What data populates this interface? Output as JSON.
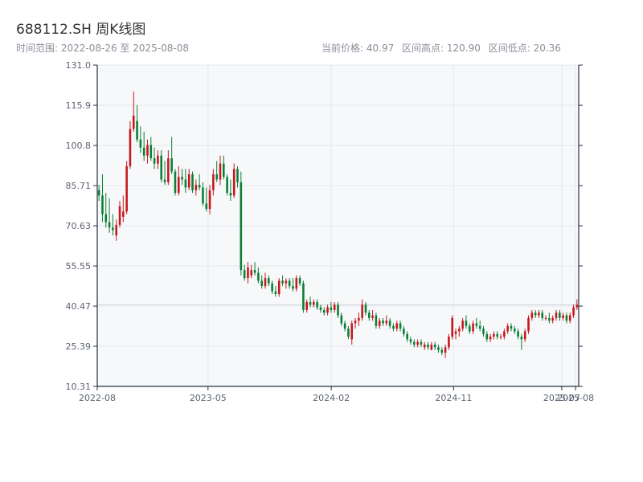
{
  "header": {
    "title": "688112.SH 周K线图",
    "date_range": "时间范围: 2022-08-26 至 2025-08-08",
    "current_price": "当前价格: 40.97",
    "high": "区间高点: 120.90",
    "low": "区间低点: 20.36"
  },
  "colors": {
    "up": "#c8161d",
    "down": "#0a7f35",
    "grid": "#e4e7ec",
    "axis": "#24303f",
    "plot_bg": "#f7f8fa",
    "last_price_line": "#cfd4db"
  },
  "chart_data": {
    "type": "candlestick",
    "period": "weekly",
    "title": "688112.SH 周K线图",
    "x_range": [
      "2022-08-26",
      "2025-08-08"
    ],
    "ylim": [
      10.31,
      131.0
    ],
    "y_ticks": [
      "10.31",
      "25.39",
      "40.47",
      "55.55",
      "70.63",
      "85.71",
      "100.8",
      "115.9",
      "131.0"
    ],
    "x_ticks": [
      {
        "date": "2022-08",
        "label": "2022-08"
      },
      {
        "date": "2023-05",
        "label": "2023-05"
      },
      {
        "date": "2024-02",
        "label": "2024-02"
      },
      {
        "date": "2024-11",
        "label": "2024-11"
      },
      {
        "date": "2025-07",
        "label": "2025-07"
      },
      {
        "date": "2025-08",
        "label": "2025-08"
      }
    ],
    "last_price": 40.97,
    "range_high": 120.9,
    "range_low": 20.36,
    "grid": true,
    "columns": [
      "open",
      "high",
      "low",
      "close"
    ],
    "candles": [
      [
        84.0,
        86.0,
        80.0,
        82.0
      ],
      [
        82.0,
        90.0,
        72.0,
        75.0
      ],
      [
        75.0,
        83.0,
        70.0,
        72.0
      ],
      [
        72.0,
        81.0,
        68.0,
        70.0
      ],
      [
        70.0,
        75.0,
        67.0,
        69.0
      ],
      [
        67.0,
        73.0,
        65.0,
        71.0
      ],
      [
        71.0,
        80.0,
        70.0,
        78.0
      ],
      [
        74.0,
        82.0,
        72.0,
        76.0
      ],
      [
        76.0,
        95.0,
        75.0,
        93.0
      ],
      [
        93.0,
        110.0,
        92.0,
        107.0
      ],
      [
        107.0,
        121.0,
        106.0,
        112.0
      ],
      [
        110.0,
        116.0,
        102.0,
        103.0
      ],
      [
        103.0,
        108.0,
        98.0,
        100.0
      ],
      [
        100.0,
        106.0,
        95.0,
        97.0
      ],
      [
        97.0,
        103.0,
        94.0,
        101.0
      ],
      [
        101.0,
        104.0,
        95.0,
        96.0
      ],
      [
        96.0,
        100.0,
        92.0,
        94.0
      ],
      [
        94.0,
        99.0,
        92.0,
        97.0
      ],
      [
        97.0,
        99.0,
        87.0,
        88.0
      ],
      [
        88.0,
        95.0,
        86.0,
        87.0
      ],
      [
        87.0,
        99.0,
        86.0,
        96.0
      ],
      [
        96.0,
        104.0,
        90.0,
        91.0
      ],
      [
        91.0,
        92.0,
        82.0,
        83.0
      ],
      [
        83.0,
        93.0,
        82.0,
        89.0
      ],
      [
        89.0,
        92.0,
        86.0,
        88.0
      ],
      [
        88.0,
        92.0,
        83.0,
        85.0
      ],
      [
        85.0,
        92.0,
        84.0,
        90.0
      ],
      [
        90.0,
        91.0,
        83.0,
        84.0
      ],
      [
        84.0,
        88.0,
        82.0,
        86.0
      ],
      [
        86.0,
        90.0,
        84.0,
        85.0
      ],
      [
        85.0,
        87.0,
        78.0,
        79.0
      ],
      [
        79.0,
        85.0,
        76.0,
        77.0
      ],
      [
        77.0,
        86.0,
        75.0,
        84.0
      ],
      [
        84.0,
        92.0,
        82.0,
        90.0
      ],
      [
        90.0,
        95.0,
        87.0,
        88.0
      ],
      [
        88.0,
        97.0,
        86.0,
        94.0
      ],
      [
        94.0,
        97.0,
        88.0,
        89.0
      ],
      [
        89.0,
        90.0,
        82.0,
        83.0
      ],
      [
        83.0,
        88.0,
        80.0,
        82.0
      ],
      [
        82.0,
        94.0,
        81.0,
        92.0
      ],
      [
        92.0,
        93.0,
        85.0,
        87.0
      ],
      [
        87.0,
        91.0,
        52.0,
        54.0
      ],
      [
        54.0,
        56.0,
        50.0,
        51.0
      ],
      [
        51.0,
        57.0,
        49.0,
        55.0
      ],
      [
        52.0,
        56.0,
        51.0,
        54.0
      ],
      [
        54.0,
        57.0,
        52.0,
        53.0
      ],
      [
        53.0,
        55.0,
        49.0,
        50.0
      ],
      [
        50.0,
        52.0,
        47.0,
        48.0
      ],
      [
        48.0,
        53.0,
        47.0,
        51.0
      ],
      [
        51.0,
        52.0,
        48.0,
        49.0
      ],
      [
        49.0,
        50.0,
        45.0,
        46.0
      ],
      [
        46.0,
        48.0,
        44.0,
        45.0
      ],
      [
        45.0,
        51.0,
        44.0,
        50.0
      ],
      [
        50.0,
        52.0,
        48.0,
        49.0
      ],
      [
        49.0,
        51.0,
        47.0,
        50.0
      ],
      [
        50.0,
        51.0,
        47.0,
        48.0
      ],
      [
        48.0,
        51.0,
        46.0,
        47.0
      ],
      [
        47.0,
        52.0,
        46.0,
        51.0
      ],
      [
        51.0,
        52.0,
        48.0,
        49.0
      ],
      [
        49.0,
        50.0,
        38.0,
        39.0
      ],
      [
        39.0,
        43.0,
        38.0,
        42.0
      ],
      [
        42.0,
        44.0,
        40.0,
        41.0
      ],
      [
        41.0,
        43.0,
        40.0,
        42.0
      ],
      [
        42.0,
        43.0,
        39.0,
        40.0
      ],
      [
        40.0,
        41.0,
        38.0,
        39.0
      ],
      [
        39.0,
        40.0,
        37.0,
        38.0
      ],
      [
        38.0,
        41.0,
        37.0,
        40.0
      ],
      [
        40.0,
        42.0,
        38.0,
        39.0
      ],
      [
        39.0,
        42.0,
        38.0,
        41.0
      ],
      [
        41.0,
        42.0,
        36.0,
        37.0
      ],
      [
        37.0,
        38.0,
        33.0,
        34.0
      ],
      [
        34.0,
        35.0,
        31.0,
        32.0
      ],
      [
        32.0,
        33.0,
        28.0,
        29.0
      ],
      [
        28.0,
        35.0,
        26.0,
        34.0
      ],
      [
        34.0,
        36.0,
        32.0,
        35.0
      ],
      [
        35.0,
        38.0,
        33.0,
        36.0
      ],
      [
        36.0,
        43.0,
        35.0,
        41.0
      ],
      [
        41.0,
        42.0,
        37.0,
        38.0
      ],
      [
        38.0,
        39.0,
        35.0,
        36.0
      ],
      [
        36.0,
        39.0,
        35.0,
        37.0
      ],
      [
        37.0,
        38.0,
        32.0,
        33.0
      ],
      [
        33.0,
        36.0,
        32.0,
        35.0
      ],
      [
        35.0,
        36.0,
        33.0,
        34.0
      ],
      [
        34.0,
        37.0,
        33.0,
        35.0
      ],
      [
        35.0,
        36.0,
        32.0,
        33.0
      ],
      [
        33.0,
        34.0,
        31.0,
        32.0
      ],
      [
        32.0,
        35.0,
        31.0,
        34.0
      ],
      [
        34.0,
        35.0,
        31.0,
        32.0
      ],
      [
        32.0,
        33.0,
        29.0,
        30.0
      ],
      [
        30.0,
        31.0,
        27.0,
        28.0
      ],
      [
        28.0,
        29.0,
        26.0,
        27.0
      ],
      [
        27.0,
        28.0,
        25.0,
        26.0
      ],
      [
        26.0,
        28.0,
        25.0,
        27.0
      ],
      [
        27.0,
        28.0,
        25.0,
        26.0
      ],
      [
        25.0,
        27.0,
        24.0,
        26.0
      ],
      [
        26.0,
        27.0,
        24.0,
        25.0
      ],
      [
        24.0,
        27.0,
        24.0,
        26.0
      ],
      [
        26.0,
        27.0,
        24.0,
        25.0
      ],
      [
        25.0,
        26.0,
        23.0,
        24.0
      ],
      [
        24.0,
        25.0,
        22.0,
        23.0
      ],
      [
        23.0,
        26.0,
        21.0,
        25.0
      ],
      [
        25.0,
        30.0,
        24.0,
        29.0
      ],
      [
        29.0,
        37.0,
        28.0,
        36.0
      ],
      [
        30.0,
        32.0,
        28.0,
        31.0
      ],
      [
        31.0,
        33.0,
        29.0,
        32.0
      ],
      [
        32.0,
        36.0,
        31.0,
        35.0
      ],
      [
        35.0,
        37.0,
        32.0,
        33.0
      ],
      [
        33.0,
        34.0,
        30.0,
        31.0
      ],
      [
        31.0,
        35.0,
        30.0,
        34.0
      ],
      [
        34.0,
        36.0,
        32.0,
        33.0
      ],
      [
        33.0,
        35.0,
        31.0,
        32.0
      ],
      [
        32.0,
        33.0,
        29.0,
        30.0
      ],
      [
        30.0,
        31.0,
        27.0,
        28.0
      ],
      [
        28.0,
        30.0,
        27.0,
        29.0
      ],
      [
        29.0,
        31.0,
        28.0,
        30.0
      ],
      [
        30.0,
        31.0,
        28.0,
        29.0
      ],
      [
        29.0,
        30.0,
        28.0,
        29.0
      ],
      [
        29.0,
        32.0,
        28.0,
        31.0
      ],
      [
        31.0,
        34.0,
        30.0,
        33.0
      ],
      [
        33.0,
        34.0,
        31.0,
        32.0
      ],
      [
        32.0,
        33.0,
        30.0,
        31.0
      ],
      [
        31.0,
        32.0,
        28.0,
        29.0
      ],
      [
        29.0,
        30.0,
        24.0,
        28.0
      ],
      [
        28.0,
        32.0,
        27.0,
        31.0
      ],
      [
        31.0,
        37.0,
        30.0,
        36.0
      ],
      [
        36.0,
        39.0,
        35.0,
        38.0
      ],
      [
        38.0,
        39.0,
        36.0,
        37.0
      ],
      [
        37.0,
        39.0,
        36.0,
        38.0
      ],
      [
        38.0,
        39.0,
        35.0,
        36.0
      ],
      [
        36.0,
        37.0,
        35.0,
        36.0
      ],
      [
        36.0,
        38.0,
        34.0,
        35.0
      ],
      [
        35.0,
        37.0,
        34.0,
        36.0
      ],
      [
        36.0,
        39.0,
        35.0,
        38.0
      ],
      [
        38.0,
        39.0,
        35.0,
        36.0
      ],
      [
        36.0,
        38.0,
        35.0,
        37.0
      ],
      [
        37.0,
        38.0,
        34.0,
        35.0
      ],
      [
        35.0,
        38.0,
        34.0,
        37.0
      ],
      [
        37.0,
        41.0,
        36.0,
        40.0
      ],
      [
        40.0,
        43.0,
        39.0,
        40.97
      ]
    ]
  }
}
